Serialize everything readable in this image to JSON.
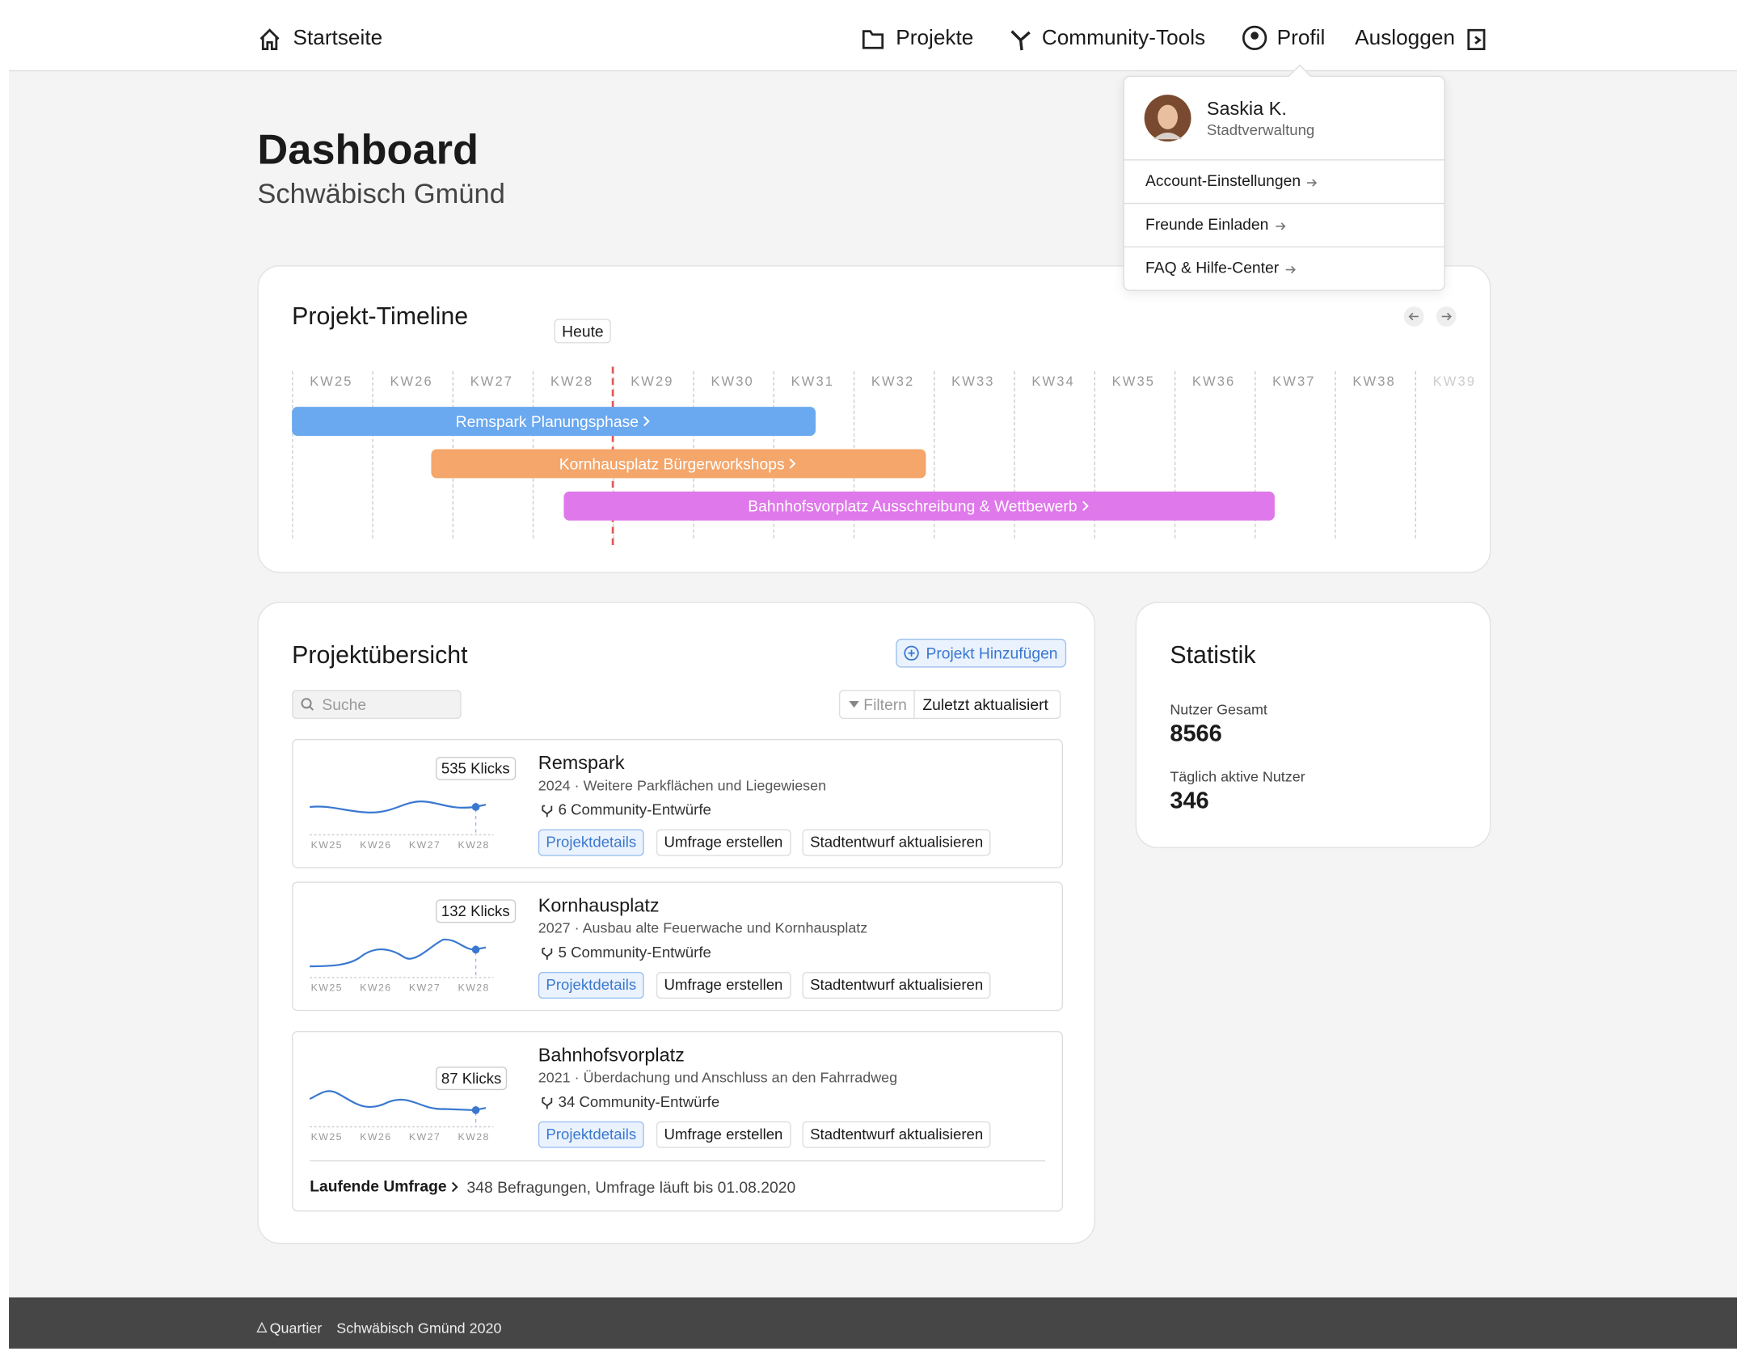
{
  "nav": {
    "home": "Startseite",
    "items": [
      "Projekte",
      "Community-Tools",
      "Profil",
      "Ausloggen"
    ]
  },
  "profile_menu": {
    "name": "Saskia K.",
    "role": "Stadtverwaltung",
    "links": [
      "Account-Einstellungen",
      "Freunde Einladen",
      "FAQ & Hilfe-Center"
    ]
  },
  "header": {
    "title": "Dashboard",
    "subtitle": "Schwäbisch Gmünd"
  },
  "timeline": {
    "title": "Projekt-Timeline",
    "today": "Heute",
    "weeks": [
      "KW25",
      "KW26",
      "KW27",
      "KW28",
      "KW29",
      "KW30",
      "KW31",
      "KW32",
      "KW33",
      "KW34",
      "KW35",
      "KW36",
      "KW37",
      "KW38",
      "KW39"
    ],
    "bars": [
      "Remspark Planungsphase",
      "Kornhausplatz Bürgerworkshops",
      "Bahnhofsvorplatz Ausschreibung & Wettbewerb"
    ]
  },
  "projects": {
    "title": "Projektübersicht",
    "add": "Projekt Hinzufügen",
    "search": "Suche",
    "filter": "Filtern",
    "sort": "Zuletzt aktualisiert",
    "actions": [
      "Projektdetails",
      "Umfrage erstellen",
      "Stadtentwurf aktualisieren"
    ],
    "items": [
      {
        "clicks": "535 Klicks",
        "name": "Remspark",
        "info": "2024 · Weitere Parkflächen und Liegewiesen",
        "drafts": "6 Community-Entwürfe"
      },
      {
        "clicks": "132 Klicks",
        "name": "Kornhausplatz",
        "info": "2027 · Ausbau alte Feuerwache und Kornhausplatz",
        "drafts": "5 Community-Entwürfe"
      },
      {
        "clicks": "87 Klicks",
        "name": "Bahnhofsvorplatz",
        "info": "2021 · Überdachung und Anschluss an den Fahrradweg",
        "drafts": "34 Community-Entwürfe"
      }
    ],
    "survey": {
      "label": "Laufende Umfrage",
      "text": "348 Befragungen, Umfrage läuft bis 01.08.2020"
    }
  },
  "stats": {
    "title": "Statistik",
    "items": [
      {
        "label": "Nutzer Gesamt",
        "value": 8566
      },
      {
        "label": "Täglich aktive Nutzer",
        "value": 346
      }
    ]
  },
  "footer": {
    "brand": "Quartier",
    "text": "Schwäbisch Gmünd 2020"
  }
}
